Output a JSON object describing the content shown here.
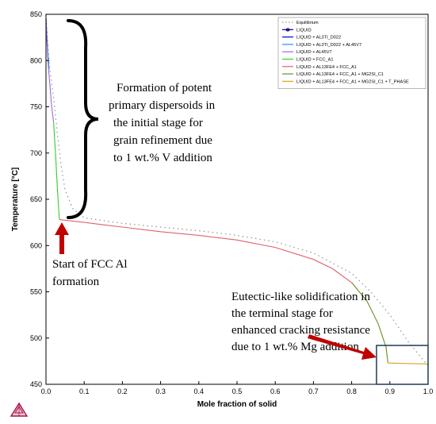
{
  "chart_data": {
    "type": "line",
    "xlabel": "Mole fraction of solid",
    "ylabel": "Temperature [°C]",
    "xlim": [
      0.0,
      1.0
    ],
    "ylim": [
      450,
      850
    ],
    "x_ticks": [
      "0.0",
      "0.1",
      "0.2",
      "0.3",
      "0.4",
      "0.5",
      "0.6",
      "0.7",
      "0.8",
      "0.9",
      "1.0"
    ],
    "y_ticks": [
      "450",
      "500",
      "550",
      "600",
      "650",
      "700",
      "750",
      "800",
      "850"
    ],
    "grid": false,
    "legend_position": "top-right",
    "series": [
      {
        "name": "Equilibrium",
        "color": "#999999",
        "style": "dotted",
        "points": [
          [
            0.0,
            850
          ],
          [
            0.005,
            815
          ],
          [
            0.01,
            790
          ],
          [
            0.02,
            760
          ],
          [
            0.03,
            720
          ],
          [
            0.04,
            685
          ],
          [
            0.05,
            660
          ],
          [
            0.07,
            640
          ],
          [
            0.1,
            630
          ],
          [
            0.2,
            624
          ],
          [
            0.3,
            620
          ],
          [
            0.4,
            616
          ],
          [
            0.5,
            611
          ],
          [
            0.6,
            604
          ],
          [
            0.7,
            592
          ],
          [
            0.8,
            570
          ],
          [
            0.85,
            550
          ],
          [
            0.9,
            525
          ],
          [
            0.95,
            495
          ],
          [
            1.0,
            470
          ]
        ]
      },
      {
        "name": "LIQUID",
        "color": "#00008b",
        "style": "solid",
        "marker": "star",
        "points": [
          [
            0.0,
            843
          ],
          [
            0.002,
            843
          ]
        ]
      },
      {
        "name": "LIQUID + AL3TI_D022",
        "color": "#0000cd",
        "style": "solid",
        "points": [
          [
            0.0,
            843
          ],
          [
            0.002,
            828
          ],
          [
            0.004,
            815
          ]
        ]
      },
      {
        "name": "LIQUID + AL3TI_D022 + AL45V7",
        "color": "#1e90ff",
        "style": "solid",
        "points": [
          [
            0.004,
            815
          ],
          [
            0.008,
            790
          ]
        ]
      },
      {
        "name": "LIQUID + AL45V7",
        "color": "#9370db",
        "style": "solid",
        "points": [
          [
            0.0,
            843
          ],
          [
            0.005,
            800
          ],
          [
            0.01,
            775
          ],
          [
            0.015,
            750
          ],
          [
            0.02,
            733
          ]
        ]
      },
      {
        "name": "LIQUID + FCC_A1",
        "color": "#32cd32",
        "style": "solid",
        "points": [
          [
            0.02,
            733
          ],
          [
            0.025,
            700
          ],
          [
            0.03,
            660
          ],
          [
            0.035,
            628
          ]
        ]
      },
      {
        "name": "LIQUID + AL13FE4 + FCC_A1",
        "color": "#e06070",
        "style": "solid",
        "points": [
          [
            0.035,
            628
          ],
          [
            0.1,
            625
          ],
          [
            0.2,
            620
          ],
          [
            0.3,
            615
          ],
          [
            0.4,
            611
          ],
          [
            0.5,
            606
          ],
          [
            0.6,
            598
          ],
          [
            0.7,
            585
          ],
          [
            0.75,
            575
          ],
          [
            0.8,
            560
          ]
        ]
      },
      {
        "name": "LIQUID + AL13FE4 + FCC_A1 + MG2SI_C1",
        "color": "#6b8e23",
        "style": "solid",
        "points": [
          [
            0.8,
            560
          ],
          [
            0.84,
            540
          ],
          [
            0.87,
            515
          ],
          [
            0.89,
            490
          ],
          [
            0.895,
            473
          ]
        ]
      },
      {
        "name": "LIQUID + AL13FE4 + FCC_A1 + MG2SI_C1 + T_PHASE",
        "color": "#daa520",
        "style": "solid",
        "points": [
          [
            0.895,
            473
          ],
          [
            1.0,
            472
          ]
        ]
      }
    ],
    "legend_entries": [
      "Equilibrium",
      "LIQUID",
      "LIQUID + AL3TI_D022",
      "LIQUID + AL3TI_D022 + AL45V7",
      "LIQUID + AL45V7",
      "LIQUID + FCC_A1",
      "LIQUID + AL13FE4 + FCC_A1",
      "LIQUID + AL13FE4 + FCC_A1 + MG2SI_C1",
      "LIQUID + AL13FE4 + FCC_A1 + MG2SI_C1 + T_PHASE"
    ],
    "annotations": [
      {
        "id": "dispersoids",
        "lines": [
          "Formation of potent",
          "primary dispersoids in",
          "the initial stage for",
          "grain refinement due",
          "to 1 wt.% V addition"
        ]
      },
      {
        "id": "fcc",
        "lines": [
          "Start of FCC Al",
          "formation"
        ]
      },
      {
        "id": "eutectic",
        "lines": [
          "Eutectic-like solidification in",
          "the terminal stage for",
          "enhanced cracking resistance",
          "due to 1 wt.% Mg addition"
        ]
      }
    ],
    "highlight_box": {
      "x": [
        0.865,
        1.0
      ],
      "y": [
        450,
        492
      ],
      "color": "#1f3a5a"
    }
  }
}
